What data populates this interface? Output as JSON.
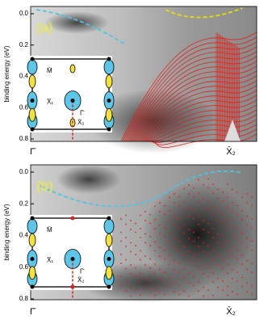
{
  "panels": [
    {
      "label": "(a)",
      "y_label": "binding energy (eV)",
      "yticks": [
        {
          "value": 0,
          "label": "0.0"
        },
        {
          "value": 0.2,
          "label": "0.2"
        },
        {
          "value": 0.4,
          "label": "0.4"
        },
        {
          "value": 0.6,
          "label": "0.6"
        },
        {
          "value": 0.8,
          "label": "0.8"
        }
      ],
      "x_labels": [
        "Γ̄",
        "X̄₂"
      ],
      "inset_labels": [
        "M̄",
        "X̄₁",
        "Γ̄",
        "X̄₂"
      ]
    },
    {
      "label": "(b)",
      "y_label": "binding energy (eV)",
      "yticks": [
        {
          "value": 0,
          "label": "0.0"
        },
        {
          "value": 0.2,
          "label": "0.2"
        },
        {
          "value": 0.4,
          "label": "0.4"
        },
        {
          "value": 0.6,
          "label": "0.6"
        },
        {
          "value": 0.8,
          "label": "0.8"
        }
      ],
      "x_labels": [
        "Γ̄",
        "X̄₂"
      ],
      "inset_labels": [
        "M̄",
        "X̄₁",
        "Γ̄",
        "X̄₂"
      ]
    }
  ]
}
